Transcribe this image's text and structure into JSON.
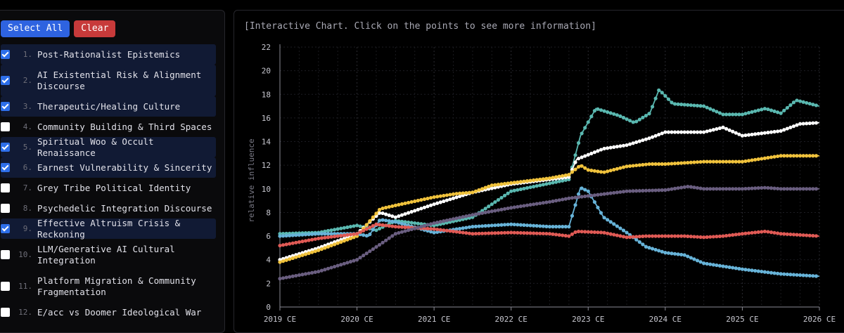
{
  "sidebar": {
    "select_all_label": "Select All",
    "clear_label": "Clear",
    "topics": [
      {
        "num": "1.",
        "name": "Post-Rationalist Epistemics",
        "checked": true
      },
      {
        "num": "2.",
        "name": "AI Existential Risk & Alignment Discourse",
        "checked": true
      },
      {
        "num": "3.",
        "name": "Therapeutic/Healing Culture",
        "checked": true
      },
      {
        "num": "4.",
        "name": "Community Building & Third Spaces",
        "checked": false
      },
      {
        "num": "5.",
        "name": "Spiritual Woo & Occult Renaissance",
        "checked": true
      },
      {
        "num": "6.",
        "name": "Earnest Vulnerability & Sincerity",
        "checked": true
      },
      {
        "num": "7.",
        "name": "Grey Tribe Political Identity",
        "checked": false
      },
      {
        "num": "8.",
        "name": "Psychedelic Integration Discourse",
        "checked": false
      },
      {
        "num": "9.",
        "name": "Effective Altruism Crisis & Reckoning",
        "checked": true
      },
      {
        "num": "10.",
        "name": "LLM/Generative AI Cultural Integration",
        "checked": false
      },
      {
        "num": "11.",
        "name": "Platform Migration & Community Fragmentation",
        "checked": false
      },
      {
        "num": "12.",
        "name": "E/acc vs Doomer Ideological War",
        "checked": false
      }
    ]
  },
  "chart_note": "[Interactive Chart. Click on the points to see more information]",
  "chart_data": {
    "type": "line",
    "ylabel": "relative influence",
    "xlabel": "",
    "ylim": [
      0,
      22
    ],
    "yticks": [
      0,
      2,
      4,
      6,
      8,
      10,
      12,
      14,
      16,
      18,
      20,
      22
    ],
    "xlim": [
      2019,
      2026
    ],
    "xticks": [
      {
        "value": 2019,
        "label": "2019 CE"
      },
      {
        "value": 2020,
        "label": "2020 CE"
      },
      {
        "value": 2021,
        "label": "2021 CE"
      },
      {
        "value": 2022,
        "label": "2022 CE"
      },
      {
        "value": 2023,
        "label": "2023 CE"
      },
      {
        "value": 2024,
        "label": "2024 CE"
      },
      {
        "value": 2025,
        "label": "2025 CE"
      },
      {
        "value": 2026,
        "label": "2026 CE"
      }
    ],
    "grid": true,
    "series": [
      {
        "color": "#5ab8b0",
        "points": [
          [
            2019,
            6.2
          ],
          [
            2019.5,
            6.3
          ],
          [
            2020,
            6.9
          ],
          [
            2020.25,
            6.5
          ],
          [
            2020.5,
            7.3
          ],
          [
            2021,
            6.9
          ],
          [
            2021.5,
            7.6
          ],
          [
            2022,
            9.8
          ],
          [
            2022.75,
            10.8
          ],
          [
            2022.9,
            14.5
          ],
          [
            2023.1,
            16.8
          ],
          [
            2023.4,
            16.2
          ],
          [
            2023.6,
            15.6
          ],
          [
            2023.8,
            16.4
          ],
          [
            2023.92,
            18.4
          ],
          [
            2024.1,
            17.2
          ],
          [
            2024.5,
            17.0
          ],
          [
            2024.75,
            16.3
          ],
          [
            2025,
            16.3
          ],
          [
            2025.3,
            16.8
          ],
          [
            2025.5,
            16.4
          ],
          [
            2025.7,
            17.5
          ],
          [
            2026,
            17.0
          ]
        ]
      },
      {
        "color": "#ffffff",
        "points": [
          [
            2019,
            4.0
          ],
          [
            2019.5,
            5.0
          ],
          [
            2020,
            6.2
          ],
          [
            2020.3,
            8.0
          ],
          [
            2020.5,
            7.6
          ],
          [
            2021,
            8.7
          ],
          [
            2021.5,
            9.7
          ],
          [
            2022,
            10.4
          ],
          [
            2022.75,
            11.0
          ],
          [
            2022.85,
            12.5
          ],
          [
            2023.2,
            13.4
          ],
          [
            2023.5,
            13.7
          ],
          [
            2023.8,
            14.3
          ],
          [
            2024,
            14.8
          ],
          [
            2024.5,
            14.8
          ],
          [
            2024.75,
            15.2
          ],
          [
            2025,
            14.5
          ],
          [
            2025.5,
            14.9
          ],
          [
            2025.75,
            15.5
          ],
          [
            2026,
            15.6
          ]
        ]
      },
      {
        "color": "#f0c23c",
        "points": [
          [
            2019,
            3.8
          ],
          [
            2019.5,
            4.8
          ],
          [
            2020,
            6.0
          ],
          [
            2020.3,
            8.3
          ],
          [
            2020.5,
            8.6
          ],
          [
            2021,
            9.3
          ],
          [
            2021.3,
            9.6
          ],
          [
            2021.5,
            9.7
          ],
          [
            2021.75,
            10.3
          ],
          [
            2022,
            10.5
          ],
          [
            2022.5,
            10.9
          ],
          [
            2022.75,
            11.2
          ],
          [
            2022.9,
            12.0
          ],
          [
            2023,
            11.6
          ],
          [
            2023.2,
            11.4
          ],
          [
            2023.5,
            11.9
          ],
          [
            2023.8,
            12.1
          ],
          [
            2024,
            12.1
          ],
          [
            2024.5,
            12.3
          ],
          [
            2024.75,
            12.3
          ],
          [
            2025,
            12.3
          ],
          [
            2025.5,
            12.8
          ],
          [
            2026,
            12.8
          ]
        ]
      },
      {
        "color": "#67b3d8",
        "points": [
          [
            2019,
            6.0
          ],
          [
            2019.5,
            6.2
          ],
          [
            2020,
            6.2
          ],
          [
            2020.15,
            6.0
          ],
          [
            2020.3,
            7.4
          ],
          [
            2020.5,
            7.2
          ],
          [
            2021,
            6.3
          ],
          [
            2021.5,
            6.8
          ],
          [
            2022,
            7.0
          ],
          [
            2022.5,
            6.8
          ],
          [
            2022.75,
            6.8
          ],
          [
            2022.9,
            10.1
          ],
          [
            2023,
            9.8
          ],
          [
            2023.2,
            7.6
          ],
          [
            2023.5,
            6.3
          ],
          [
            2023.75,
            5.1
          ],
          [
            2024,
            4.6
          ],
          [
            2024.25,
            4.4
          ],
          [
            2024.5,
            3.7
          ],
          [
            2025,
            3.2
          ],
          [
            2025.5,
            2.8
          ],
          [
            2026,
            2.6
          ]
        ]
      },
      {
        "color": "#e05a55",
        "points": [
          [
            2019,
            5.2
          ],
          [
            2019.5,
            5.8
          ],
          [
            2020,
            6.2
          ],
          [
            2020.25,
            7.0
          ],
          [
            2020.5,
            6.8
          ],
          [
            2021,
            6.6
          ],
          [
            2021.5,
            6.2
          ],
          [
            2022,
            6.3
          ],
          [
            2022.5,
            6.2
          ],
          [
            2022.75,
            6.0
          ],
          [
            2022.85,
            6.4
          ],
          [
            2023.2,
            6.3
          ],
          [
            2023.5,
            5.9
          ],
          [
            2023.75,
            6.0
          ],
          [
            2024,
            6.0
          ],
          [
            2024.25,
            6.0
          ],
          [
            2024.5,
            5.9
          ],
          [
            2024.75,
            6.0
          ],
          [
            2025,
            6.2
          ],
          [
            2025.3,
            6.4
          ],
          [
            2025.5,
            6.2
          ],
          [
            2026,
            6.0
          ]
        ]
      },
      {
        "color": "#6a5e80",
        "points": [
          [
            2019,
            2.4
          ],
          [
            2019.5,
            3.0
          ],
          [
            2020,
            4.0
          ],
          [
            2020.3,
            5.3
          ],
          [
            2020.5,
            6.2
          ],
          [
            2021,
            7.1
          ],
          [
            2021.5,
            7.8
          ],
          [
            2022,
            8.4
          ],
          [
            2022.5,
            8.9
          ],
          [
            2022.75,
            9.2
          ],
          [
            2023,
            9.4
          ],
          [
            2023.5,
            9.8
          ],
          [
            2024,
            9.9
          ],
          [
            2024.3,
            10.2
          ],
          [
            2024.5,
            10.0
          ],
          [
            2025,
            10.0
          ],
          [
            2025.3,
            10.1
          ],
          [
            2025.5,
            10.0
          ],
          [
            2026,
            10.0
          ]
        ]
      }
    ]
  }
}
